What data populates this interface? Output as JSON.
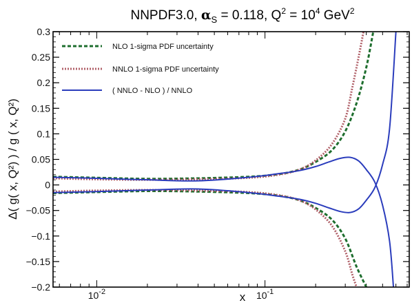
{
  "chart_data": {
    "type": "line",
    "title": {
      "prefix": "NNPDF3.0, ",
      "alpha": "α",
      "alpha_sub": "S",
      "mid": " = 0.118, Q",
      "q_sup": "2",
      "mid2": " = 10",
      "exp_sup": "4",
      "suffix": " GeV",
      "gev_sup": "2"
    },
    "xlabel": "x",
    "ylabel": "Δ( g( x, Q²) ) / g ( x, Q²)",
    "x_scale": "log",
    "xlim": [
      0.0055,
      0.72
    ],
    "ylim": [
      -0.2,
      0.3
    ],
    "x_ticks": [
      {
        "value": 0.01,
        "label": "10",
        "exp": "-2"
      },
      {
        "value": 0.1,
        "label": "10",
        "exp": "-1"
      }
    ],
    "y_ticks": [
      {
        "value": 0.3,
        "label": "0.3"
      },
      {
        "value": 0.25,
        "label": "0.25"
      },
      {
        "value": 0.2,
        "label": "0.2"
      },
      {
        "value": 0.15,
        "label": "0.15"
      },
      {
        "value": 0.1,
        "label": "0.1"
      },
      {
        "value": 0.05,
        "label": "0.05"
      },
      {
        "value": 0,
        "label": "0"
      },
      {
        "value": -0.05,
        "label": "−0.05"
      },
      {
        "value": -0.1,
        "label": "−0.1"
      },
      {
        "value": -0.15,
        "label": "−0.15"
      },
      {
        "value": -0.2,
        "label": "−0.2"
      }
    ],
    "legend_position": "top-left",
    "series": [
      {
        "name": "NLO 1-sigma PDF uncertainty",
        "color": "#1e6e2e",
        "style": "dashed",
        "upper": [
          [
            0.0055,
            0.016
          ],
          [
            0.01,
            0.014
          ],
          [
            0.02,
            0.012
          ],
          [
            0.04,
            0.013
          ],
          [
            0.08,
            0.016
          ],
          [
            0.12,
            0.021
          ],
          [
            0.16,
            0.03
          ],
          [
            0.2,
            0.045
          ],
          [
            0.25,
            0.068
          ],
          [
            0.3,
            0.105
          ],
          [
            0.35,
            0.16
          ],
          [
            0.4,
            0.23
          ],
          [
            0.44,
            0.3
          ]
        ],
        "lower": [
          [
            0.0055,
            -0.016
          ],
          [
            0.01,
            -0.014
          ],
          [
            0.02,
            -0.012
          ],
          [
            0.04,
            -0.013
          ],
          [
            0.08,
            -0.016
          ],
          [
            0.12,
            -0.021
          ],
          [
            0.16,
            -0.03
          ],
          [
            0.2,
            -0.045
          ],
          [
            0.25,
            -0.068
          ],
          [
            0.3,
            -0.105
          ],
          [
            0.35,
            -0.16
          ],
          [
            0.4,
            -0.2
          ]
        ]
      },
      {
        "name": "NNLO 1-sigma PDF uncertainty",
        "color": "#b06068",
        "style": "dotted",
        "upper": [
          [
            0.0055,
            0.013
          ],
          [
            0.01,
            0.011
          ],
          [
            0.02,
            0.01
          ],
          [
            0.04,
            0.011
          ],
          [
            0.08,
            0.014
          ],
          [
            0.12,
            0.02
          ],
          [
            0.16,
            0.03
          ],
          [
            0.2,
            0.048
          ],
          [
            0.25,
            0.08
          ],
          [
            0.3,
            0.13
          ],
          [
            0.33,
            0.19
          ],
          [
            0.36,
            0.25
          ],
          [
            0.385,
            0.3
          ]
        ],
        "lower": [
          [
            0.0055,
            -0.013
          ],
          [
            0.01,
            -0.011
          ],
          [
            0.02,
            -0.01
          ],
          [
            0.04,
            -0.011
          ],
          [
            0.08,
            -0.014
          ],
          [
            0.12,
            -0.02
          ],
          [
            0.16,
            -0.03
          ],
          [
            0.2,
            -0.048
          ],
          [
            0.25,
            -0.08
          ],
          [
            0.3,
            -0.13
          ],
          [
            0.33,
            -0.175
          ],
          [
            0.35,
            -0.2
          ]
        ]
      },
      {
        "name": "( NNLO - NLO ) / NNLO",
        "color": "#2a3cbc",
        "style": "solid",
        "upper": [
          [
            0.0055,
            0.015
          ],
          [
            0.01,
            0.013
          ],
          [
            0.02,
            0.01
          ],
          [
            0.04,
            0.008
          ],
          [
            0.08,
            0.015
          ],
          [
            0.12,
            0.022
          ],
          [
            0.16,
            0.028
          ],
          [
            0.2,
            0.036
          ],
          [
            0.24,
            0.045
          ],
          [
            0.28,
            0.052
          ],
          [
            0.32,
            0.054
          ],
          [
            0.36,
            0.047
          ],
          [
            0.4,
            0.03
          ],
          [
            0.45,
            0.005
          ],
          [
            0.5,
            -0.04
          ],
          [
            0.55,
            -0.11
          ],
          [
            0.58,
            -0.2
          ]
        ],
        "lower": [
          [
            0.0055,
            -0.015
          ],
          [
            0.01,
            -0.013
          ],
          [
            0.02,
            -0.01
          ],
          [
            0.04,
            -0.008
          ],
          [
            0.08,
            -0.015
          ],
          [
            0.12,
            -0.022
          ],
          [
            0.16,
            -0.028
          ],
          [
            0.2,
            -0.036
          ],
          [
            0.24,
            -0.045
          ],
          [
            0.28,
            -0.052
          ],
          [
            0.32,
            -0.054
          ],
          [
            0.36,
            -0.047
          ],
          [
            0.4,
            -0.03
          ],
          [
            0.45,
            -0.005
          ],
          [
            0.5,
            0.04
          ],
          [
            0.55,
            0.11
          ],
          [
            0.6,
            0.3
          ]
        ]
      }
    ]
  }
}
